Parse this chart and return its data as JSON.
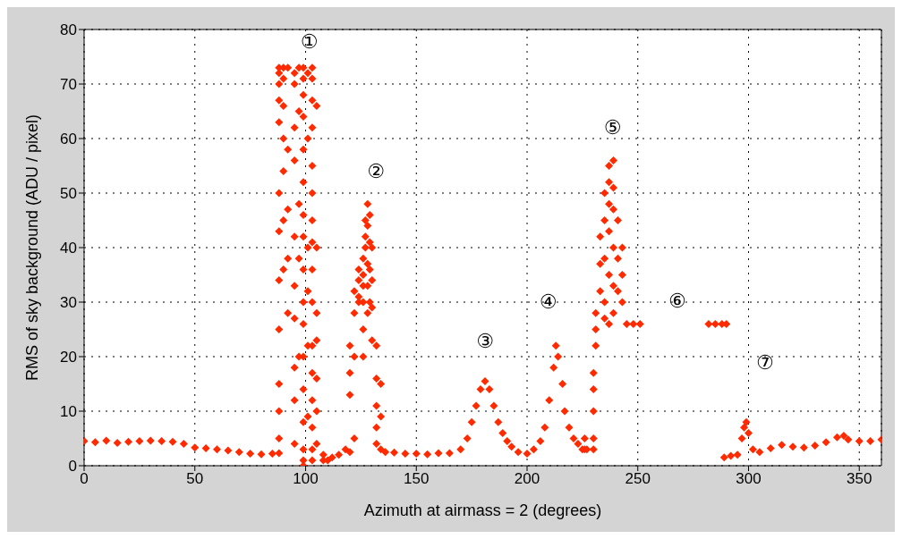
{
  "chart_data": {
    "type": "scatter",
    "xlabel": "Azimuth at airmass = 2 (degrees)",
    "ylabel": "RMS of sky background (ADU / pixel)",
    "xlim": [
      0,
      360
    ],
    "xticks": [
      0,
      50,
      100,
      150,
      200,
      250,
      300,
      350
    ],
    "ylim": [
      0,
      80
    ],
    "yticks": [
      0,
      10,
      20,
      30,
      40,
      50,
      60,
      70,
      80
    ],
    "grid": true,
    "marker": "diamond",
    "annotations": [
      "①",
      "②",
      "③",
      "④",
      "⑤",
      "⑥",
      "⑦"
    ],
    "series": [
      {
        "color": "#ff2a00",
        "x": [
          0,
          5,
          10,
          15,
          20,
          25,
          30,
          35,
          40,
          45,
          50,
          55,
          60,
          65,
          70,
          75,
          80,
          85,
          88,
          88,
          88,
          88,
          88,
          88,
          88,
          88,
          88,
          88,
          88,
          88,
          88,
          90,
          90,
          90,
          90,
          90,
          90,
          90,
          92,
          92,
          92,
          92,
          92,
          95,
          95,
          95,
          95,
          95,
          95,
          95,
          95,
          95,
          95,
          97,
          97,
          97,
          97,
          97,
          99,
          99,
          99,
          99,
          99,
          99,
          99,
          99,
          99,
          99,
          99,
          99,
          99,
          99,
          99,
          99,
          99,
          101,
          101,
          101,
          101,
          101,
          101,
          103,
          103,
          103,
          103,
          103,
          103,
          103,
          103,
          103,
          103,
          103,
          103,
          103,
          103,
          103,
          103,
          105,
          105,
          105,
          105,
          105,
          105,
          105,
          108,
          108,
          110,
          112,
          115,
          118,
          120,
          120,
          120,
          120,
          122,
          122,
          122,
          122,
          124,
          124,
          124,
          124,
          126,
          126,
          126,
          126,
          126,
          126,
          127,
          127,
          127,
          128,
          128,
          128,
          128,
          128,
          129,
          129,
          129,
          129,
          130,
          130,
          130,
          130,
          132,
          132,
          132,
          132,
          132,
          134,
          134,
          134,
          136,
          140,
          145,
          150,
          155,
          160,
          165,
          170,
          173,
          175,
          177,
          179,
          181,
          183,
          185,
          187,
          189,
          191,
          193,
          196,
          200,
          203,
          206,
          208,
          210,
          212,
          213,
          214,
          216,
          217,
          219,
          221,
          223,
          225,
          226,
          226,
          227,
          230,
          230,
          230,
          230,
          230,
          231,
          231,
          231,
          233,
          233,
          233,
          235,
          235,
          235,
          235,
          235,
          237,
          237,
          237,
          237,
          237,
          237,
          239,
          239,
          239,
          239,
          239,
          239,
          241,
          241,
          241,
          243,
          243,
          243,
          245,
          248,
          251,
          282,
          285,
          288,
          290,
          289,
          292,
          295,
          297,
          298,
          299,
          300,
          302,
          305,
          310,
          315,
          320,
          325,
          330,
          335,
          340,
          343,
          345,
          350,
          355,
          360
        ],
        "values": [
          4.5,
          4.3,
          4.6,
          4.2,
          4.4,
          4.5,
          4.6,
          4.5,
          4.4,
          4,
          3.3,
          3.2,
          3,
          2.8,
          2.5,
          2.2,
          2.1,
          2.2,
          2.3,
          73,
          72,
          70,
          67,
          63,
          50,
          43,
          34,
          25,
          15,
          10,
          5,
          73,
          71,
          66,
          60,
          54,
          45,
          36,
          73,
          58,
          47,
          38,
          28,
          72,
          70,
          62,
          56,
          42,
          33,
          27,
          18,
          12,
          4,
          73,
          65,
          48,
          38,
          20,
          73,
          71,
          68,
          64,
          58,
          52,
          46,
          42,
          36,
          30,
          26,
          20,
          14,
          8,
          3,
          1,
          0,
          72,
          60,
          40,
          32,
          22,
          9,
          73,
          71,
          67,
          62,
          55,
          50,
          45,
          41,
          36,
          30,
          22,
          17,
          12,
          7,
          3,
          1,
          66,
          40,
          28,
          23,
          16,
          10,
          4,
          2,
          1,
          1,
          1.5,
          2,
          3,
          2.5,
          13,
          17,
          22,
          5,
          20,
          28,
          32,
          30,
          34,
          36,
          31,
          38,
          35,
          33,
          30,
          25,
          20,
          45,
          42,
          40,
          48,
          44,
          37,
          33,
          28,
          46,
          41,
          36,
          30,
          40,
          34,
          29,
          23,
          22,
          16,
          11,
          7,
          4,
          15,
          9,
          3,
          2.5,
          2.4,
          2.2,
          2.2,
          2.1,
          2.3,
          2.3,
          3,
          5,
          8,
          11,
          14,
          15.5,
          14,
          11,
          8,
          6,
          4.5,
          3.5,
          2.5,
          2.2,
          3,
          4.5,
          7,
          12,
          18,
          22,
          20,
          15,
          10,
          7,
          5,
          4,
          3,
          5,
          3,
          3,
          3,
          5,
          10,
          14,
          17,
          22,
          25,
          28,
          32,
          37,
          42,
          38,
          45,
          50,
          30,
          27,
          55,
          52,
          48,
          43,
          35,
          26,
          56,
          51,
          47,
          40,
          33,
          28,
          45,
          38,
          32,
          40,
          35,
          30,
          26,
          26,
          26,
          26,
          26,
          26,
          26,
          1.5,
          1.8,
          2,
          5,
          7,
          8,
          6,
          3,
          2.5,
          3.2,
          3.8,
          3.5,
          3.3,
          3.7,
          4.3,
          5.2,
          5.5,
          4.8,
          4.5,
          4.5,
          4.8
        ]
      }
    ]
  }
}
